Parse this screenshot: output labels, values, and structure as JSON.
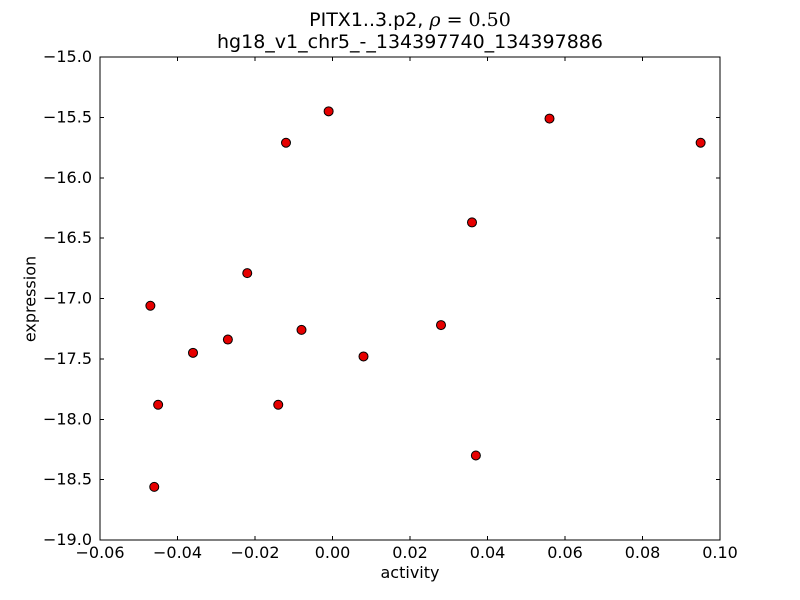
{
  "figure": {
    "title_prefix": "PITX1..3.p2, ",
    "title_rho": "ρ",
    "title_rho_value": " = 0.50",
    "subtitle": "hg18_v1_chr5_-_134397740_134397886"
  },
  "chart_data": {
    "type": "scatter",
    "title": "PITX1..3.p2, ρ = 0.50",
    "subtitle": "hg18_v1_chr5_-_134397740_134397886",
    "xlabel": "activity",
    "ylabel": "expression",
    "xlim": [
      -0.06,
      0.1
    ],
    "ylim": [
      -19.0,
      -15.0
    ],
    "xticks": [
      -0.06,
      -0.04,
      -0.02,
      0.0,
      0.02,
      0.04,
      0.06,
      0.08,
      0.1
    ],
    "xtick_labels": [
      "−0.06",
      "−0.04",
      "−0.02",
      "0.00",
      "0.02",
      "0.04",
      "0.06",
      "0.08",
      "0.10"
    ],
    "yticks": [
      -19.0,
      -18.5,
      -18.0,
      -17.5,
      -17.0,
      -16.5,
      -16.0,
      -15.5,
      -15.0
    ],
    "ytick_labels": [
      "−19.0",
      "−18.5",
      "−18.0",
      "−17.5",
      "−17.0",
      "−16.5",
      "−16.0",
      "−15.5",
      "−15.0"
    ],
    "grid": false,
    "legend": "none",
    "marker": {
      "shape": "circle",
      "fill_color": "#e60000",
      "edge_color": "#000000",
      "radius_px": 4.5
    },
    "points": [
      [
        -0.047,
        -17.06
      ],
      [
        -0.045,
        -17.88
      ],
      [
        -0.046,
        -18.56
      ],
      [
        -0.036,
        -17.45
      ],
      [
        -0.027,
        -17.34
      ],
      [
        -0.022,
        -16.79
      ],
      [
        -0.014,
        -17.88
      ],
      [
        -0.012,
        -15.71
      ],
      [
        -0.008,
        -17.26
      ],
      [
        -0.001,
        -15.45
      ],
      [
        0.008,
        -17.48
      ],
      [
        0.028,
        -17.22
      ],
      [
        0.036,
        -16.37
      ],
      [
        0.037,
        -18.3
      ],
      [
        0.056,
        -15.51
      ],
      [
        0.095,
        -15.71
      ]
    ]
  }
}
